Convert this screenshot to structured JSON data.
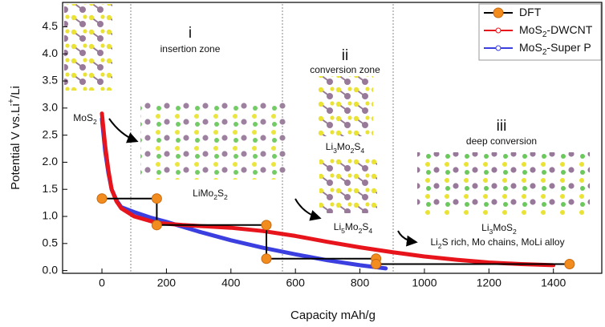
{
  "chart_data": {
    "type": "line",
    "x_label": "Capacity mAh/g",
    "y_label": "Potential V vs.Li+/Li",
    "xlim": [
      -122,
      1550
    ],
    "ylim": [
      -0.05,
      4.95
    ],
    "xticks": [
      0,
      200,
      400,
      600,
      800,
      1000,
      1200,
      1400
    ],
    "yticks": [
      {
        "value": 0,
        "label": "0.0"
      },
      0.5,
      {
        "value": 1,
        "label": "1.0"
      },
      1.5,
      {
        "value": 2,
        "label": "2.0"
      },
      2.5,
      {
        "value": 3,
        "label": "3.0"
      },
      3.5,
      {
        "value": 4,
        "label": "4.0"
      },
      4.5
    ],
    "grid": false,
    "legend": "upper right",
    "series": [
      {
        "name": "MoS2-Super P",
        "color": "#3b3fe0",
        "x": [
          0,
          10,
          20,
          30,
          45,
          60,
          100,
          150,
          200,
          300,
          400,
          500,
          600,
          700,
          800,
          880
        ],
        "values": [
          2.8,
          2.2,
          1.8,
          1.5,
          1.3,
          1.17,
          1.08,
          0.98,
          0.9,
          0.72,
          0.56,
          0.42,
          0.3,
          0.19,
          0.1,
          0.04
        ]
      },
      {
        "name": "MoS2-DWCNT",
        "color": "#e8141c",
        "x": [
          0,
          10,
          20,
          30,
          45,
          60,
          100,
          170,
          250,
          400,
          500,
          600,
          700,
          800,
          900,
          1000,
          1100,
          1200,
          1300,
          1400
        ],
        "values": [
          2.9,
          2.3,
          1.85,
          1.5,
          1.28,
          1.15,
          1.0,
          0.88,
          0.84,
          0.79,
          0.73,
          0.64,
          0.53,
          0.43,
          0.34,
          0.26,
          0.2,
          0.15,
          0.12,
          0.1
        ]
      },
      {
        "name": "DFT",
        "color": "#000000",
        "marker_color": "#f28c1e",
        "x": [
          0,
          170,
          170,
          510,
          510,
          850,
          850,
          1450
        ],
        "values": [
          1.33,
          1.33,
          0.84,
          0.84,
          0.22,
          0.22,
          0.12,
          0.12
        ]
      }
    ],
    "annotations": [
      "MoS2",
      "i",
      "insertion zone",
      "LiMo2S2",
      "ii",
      "conversion zone",
      "Li3Mo2S4",
      "Li5Mo2S4",
      "iii",
      "deep conversion",
      "Li3MoS2",
      "Li2S rich, Mo chains, MoLi alloy"
    ]
  }
}
